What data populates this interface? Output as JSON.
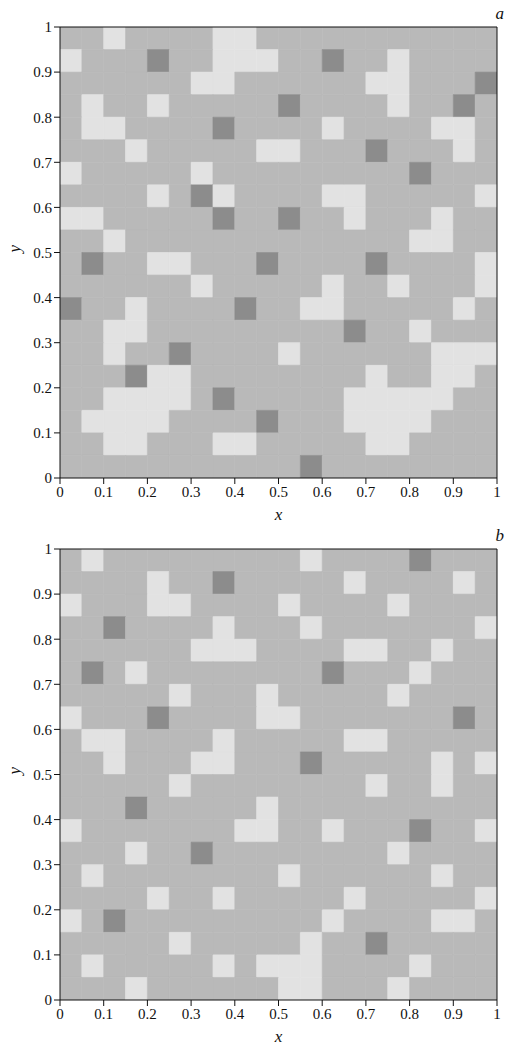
{
  "chart_data": [
    {
      "type": "heatmap",
      "title": "a",
      "x_label": "x",
      "y_label": "y",
      "xlim": [
        0,
        1
      ],
      "ylim": [
        0,
        1
      ],
      "xticks": [
        0,
        0.1,
        0.2,
        0.3,
        0.4,
        0.5,
        0.6,
        0.7,
        0.8,
        0.9,
        1
      ],
      "yticks": [
        0,
        0.1,
        0.2,
        0.3,
        0.4,
        0.5,
        0.6,
        0.7,
        0.8,
        0.9,
        1
      ],
      "colors": [
        "#8c8c8c",
        "#b9b9b9",
        "#e2e2e2"
      ],
      "cells": [
        [
          1,
          1,
          2,
          1,
          1,
          1,
          1,
          2,
          2,
          1,
          1,
          1,
          1,
          1,
          1,
          1,
          1,
          1,
          1,
          1
        ],
        [
          2,
          1,
          1,
          1,
          0,
          1,
          1,
          2,
          2,
          2,
          1,
          1,
          0,
          1,
          1,
          2,
          1,
          1,
          1,
          1
        ],
        [
          1,
          1,
          1,
          1,
          1,
          1,
          2,
          2,
          1,
          1,
          1,
          1,
          1,
          1,
          2,
          2,
          1,
          1,
          1,
          0
        ],
        [
          1,
          2,
          1,
          1,
          2,
          1,
          1,
          1,
          1,
          1,
          0,
          1,
          1,
          1,
          1,
          2,
          1,
          1,
          0,
          1
        ],
        [
          1,
          2,
          2,
          1,
          1,
          1,
          1,
          0,
          1,
          1,
          1,
          1,
          2,
          1,
          1,
          1,
          1,
          2,
          2,
          1
        ],
        [
          1,
          1,
          1,
          2,
          1,
          1,
          1,
          1,
          1,
          2,
          2,
          1,
          1,
          1,
          0,
          1,
          1,
          1,
          2,
          1
        ],
        [
          2,
          1,
          1,
          1,
          1,
          1,
          2,
          1,
          1,
          1,
          1,
          1,
          1,
          1,
          1,
          1,
          0,
          1,
          1,
          1
        ],
        [
          1,
          1,
          1,
          1,
          2,
          1,
          0,
          2,
          1,
          1,
          1,
          1,
          2,
          2,
          1,
          1,
          1,
          1,
          1,
          2
        ],
        [
          2,
          2,
          1,
          1,
          1,
          1,
          1,
          0,
          1,
          1,
          0,
          1,
          1,
          2,
          1,
          1,
          1,
          2,
          1,
          1
        ],
        [
          1,
          1,
          2,
          1,
          1,
          1,
          1,
          1,
          1,
          1,
          1,
          1,
          1,
          1,
          1,
          1,
          2,
          2,
          1,
          1
        ],
        [
          1,
          0,
          1,
          1,
          2,
          2,
          1,
          1,
          1,
          0,
          1,
          1,
          1,
          1,
          0,
          1,
          1,
          1,
          1,
          2
        ],
        [
          1,
          1,
          1,
          1,
          1,
          1,
          2,
          1,
          1,
          1,
          1,
          1,
          2,
          1,
          1,
          2,
          1,
          1,
          1,
          2
        ],
        [
          0,
          1,
          1,
          2,
          1,
          1,
          1,
          1,
          0,
          1,
          1,
          2,
          2,
          1,
          1,
          1,
          1,
          1,
          2,
          1
        ],
        [
          1,
          1,
          2,
          2,
          1,
          1,
          1,
          1,
          1,
          1,
          1,
          1,
          1,
          0,
          1,
          1,
          2,
          1,
          1,
          1
        ],
        [
          1,
          1,
          2,
          1,
          1,
          0,
          1,
          1,
          1,
          1,
          2,
          1,
          1,
          1,
          1,
          1,
          1,
          2,
          2,
          2
        ],
        [
          1,
          1,
          1,
          0,
          2,
          2,
          1,
          1,
          1,
          1,
          1,
          1,
          1,
          1,
          2,
          1,
          1,
          2,
          2,
          1
        ],
        [
          1,
          1,
          2,
          2,
          2,
          2,
          1,
          0,
          1,
          1,
          1,
          1,
          1,
          2,
          2,
          2,
          2,
          2,
          1,
          1
        ],
        [
          1,
          2,
          2,
          2,
          2,
          1,
          1,
          1,
          1,
          0,
          1,
          1,
          1,
          2,
          2,
          2,
          2,
          1,
          1,
          1
        ],
        [
          1,
          1,
          2,
          2,
          1,
          1,
          1,
          2,
          2,
          1,
          1,
          1,
          1,
          1,
          2,
          2,
          1,
          1,
          1,
          1
        ],
        [
          1,
          1,
          1,
          1,
          1,
          1,
          1,
          1,
          1,
          1,
          1,
          0,
          1,
          1,
          1,
          1,
          1,
          1,
          1,
          1
        ]
      ]
    },
    {
      "type": "heatmap",
      "title": "b",
      "x_label": "x",
      "y_label": "y",
      "xlim": [
        0,
        1
      ],
      "ylim": [
        0,
        1
      ],
      "xticks": [
        0,
        0.1,
        0.2,
        0.3,
        0.4,
        0.5,
        0.6,
        0.7,
        0.8,
        0.9,
        1
      ],
      "yticks": [
        0,
        0.1,
        0.2,
        0.3,
        0.4,
        0.5,
        0.6,
        0.7,
        0.8,
        0.9,
        1
      ],
      "colors": [
        "#8c8c8c",
        "#b9b9b9",
        "#e2e2e2"
      ],
      "cells": [
        [
          1,
          2,
          1,
          1,
          1,
          1,
          1,
          1,
          1,
          1,
          1,
          2,
          1,
          1,
          1,
          1,
          0,
          1,
          1,
          1
        ],
        [
          1,
          1,
          1,
          1,
          2,
          1,
          1,
          0,
          1,
          1,
          1,
          1,
          1,
          2,
          1,
          1,
          1,
          1,
          2,
          1
        ],
        [
          2,
          1,
          1,
          1,
          2,
          2,
          1,
          1,
          1,
          1,
          2,
          1,
          1,
          1,
          1,
          2,
          1,
          1,
          1,
          1
        ],
        [
          1,
          1,
          0,
          1,
          1,
          1,
          1,
          2,
          1,
          1,
          1,
          2,
          1,
          1,
          1,
          1,
          1,
          1,
          1,
          2
        ],
        [
          1,
          1,
          1,
          1,
          1,
          1,
          2,
          2,
          2,
          1,
          1,
          1,
          1,
          2,
          2,
          1,
          1,
          2,
          1,
          1
        ],
        [
          1,
          0,
          1,
          2,
          1,
          1,
          1,
          1,
          1,
          1,
          1,
          1,
          0,
          1,
          1,
          1,
          2,
          1,
          1,
          1
        ],
        [
          1,
          1,
          1,
          1,
          1,
          2,
          1,
          1,
          1,
          2,
          1,
          1,
          1,
          1,
          1,
          2,
          1,
          1,
          1,
          1
        ],
        [
          2,
          1,
          1,
          1,
          0,
          1,
          1,
          1,
          1,
          2,
          2,
          1,
          1,
          1,
          1,
          1,
          1,
          1,
          0,
          1
        ],
        [
          1,
          2,
          2,
          1,
          1,
          1,
          1,
          2,
          1,
          1,
          1,
          1,
          1,
          2,
          2,
          1,
          1,
          1,
          1,
          1
        ],
        [
          1,
          1,
          2,
          1,
          1,
          1,
          2,
          2,
          1,
          1,
          1,
          0,
          1,
          1,
          1,
          1,
          1,
          2,
          1,
          2
        ],
        [
          1,
          1,
          1,
          1,
          1,
          2,
          1,
          1,
          1,
          1,
          1,
          1,
          1,
          1,
          2,
          1,
          1,
          2,
          1,
          1
        ],
        [
          1,
          1,
          1,
          0,
          1,
          1,
          1,
          1,
          1,
          2,
          1,
          1,
          1,
          1,
          1,
          1,
          1,
          1,
          1,
          1
        ],
        [
          2,
          1,
          1,
          1,
          1,
          1,
          1,
          1,
          2,
          2,
          1,
          1,
          2,
          1,
          1,
          1,
          0,
          1,
          1,
          2
        ],
        [
          1,
          1,
          1,
          2,
          1,
          1,
          0,
          1,
          1,
          1,
          1,
          1,
          1,
          1,
          1,
          2,
          1,
          1,
          1,
          1
        ],
        [
          1,
          2,
          1,
          1,
          1,
          1,
          1,
          1,
          1,
          1,
          2,
          1,
          1,
          1,
          1,
          1,
          1,
          2,
          1,
          1
        ],
        [
          1,
          1,
          1,
          1,
          2,
          1,
          1,
          2,
          1,
          1,
          1,
          1,
          1,
          2,
          1,
          1,
          1,
          1,
          1,
          2
        ],
        [
          2,
          1,
          0,
          1,
          1,
          1,
          1,
          1,
          1,
          1,
          1,
          1,
          2,
          1,
          1,
          1,
          1,
          2,
          2,
          1
        ],
        [
          1,
          1,
          1,
          1,
          1,
          2,
          1,
          1,
          1,
          1,
          1,
          2,
          1,
          1,
          0,
          1,
          1,
          1,
          1,
          1
        ],
        [
          1,
          2,
          1,
          1,
          1,
          1,
          1,
          2,
          1,
          2,
          2,
          2,
          1,
          1,
          1,
          1,
          2,
          1,
          1,
          1
        ],
        [
          1,
          1,
          1,
          2,
          1,
          1,
          1,
          1,
          1,
          1,
          2,
          2,
          1,
          1,
          1,
          2,
          1,
          1,
          1,
          1
        ]
      ]
    }
  ]
}
